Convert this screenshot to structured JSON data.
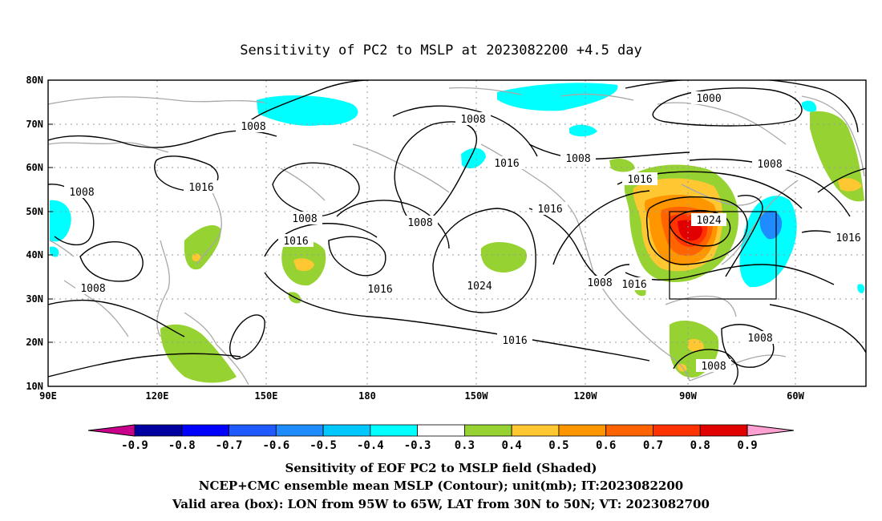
{
  "title": "Sensitivity of PC2 to MSLP at 2023082200 +4.5 day",
  "lat_labels": [
    "80N",
    "70N",
    "60N",
    "50N",
    "40N",
    "30N",
    "20N",
    "10N"
  ],
  "lon_labels": [
    "90E",
    "120E",
    "150E",
    "180",
    "150W",
    "120W",
    "90W",
    "60W"
  ],
  "contour_labels": [
    "1000",
    "1008",
    "1016",
    "1024"
  ],
  "colorbar": {
    "labels": [
      "-0.9",
      "-0.8",
      "-0.7",
      "-0.6",
      "-0.5",
      "-0.4",
      "-0.3",
      "0.3",
      "0.4",
      "0.5",
      "0.6",
      "0.7",
      "0.8",
      "0.9"
    ],
    "colors": [
      "#c8008c",
      "#0000a0",
      "#0000ff",
      "#1e5aff",
      "#1e8cff",
      "#00c8ff",
      "#00ffff",
      "#ffffff",
      "#96d232",
      "#ffc832",
      "#ff9600",
      "#ff6400",
      "#ff3200",
      "#e10000",
      "#ffa0d2"
    ]
  },
  "captions": {
    "line1": "Sensitivity of EOF PC2 to MSLP field (Shaded)",
    "line2": "NCEP+CMC ensemble mean MSLP (Contour); unit(mb); IT:2023082200",
    "line3": "Valid area (box): LON from 95W to 65W, LAT from 30N to 50N; VT: 2023082700"
  },
  "valid_box": {
    "lon_west": "95W",
    "lon_east": "65W",
    "lat_south": "30N",
    "lat_north": "50N"
  }
}
